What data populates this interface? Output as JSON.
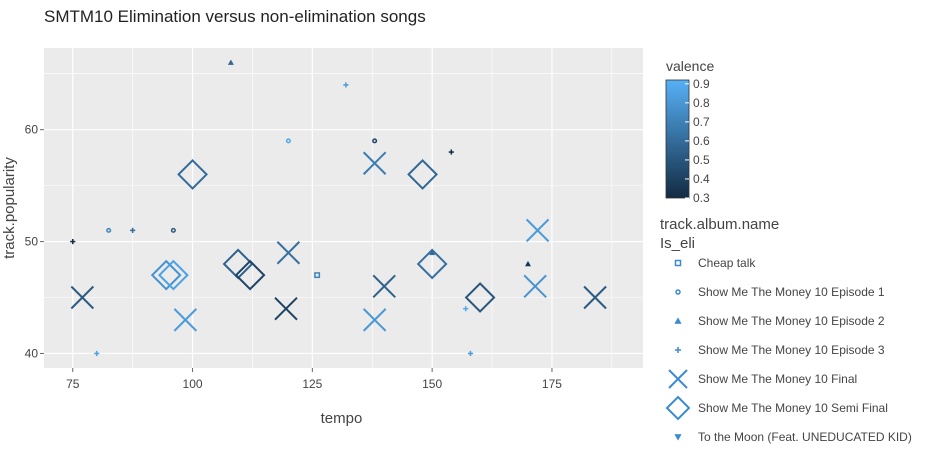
{
  "colors": {
    "panel_bg": "#ebebeb",
    "grid": "#ffffff",
    "text": "#444444",
    "scale_low": "#132b43",
    "scale_high": "#56b1f7"
  },
  "chart_data": {
    "type": "scatter",
    "title": "SMTM10 Elimination versus non-elimination songs",
    "xlabel": "tempo",
    "ylabel": "track.popularity",
    "xlim": [
      69,
      194
    ],
    "ylim": [
      38.7,
      67.3
    ],
    "x_ticks": [
      75,
      100,
      125,
      150,
      175
    ],
    "y_ticks": [
      40,
      50,
      60
    ],
    "grid": true,
    "color_legend": {
      "title": "valence",
      "ticks": [
        0.3,
        0.4,
        0.5,
        0.6,
        0.7,
        0.8,
        0.9
      ],
      "tick_labels": [
        "0.3",
        "0.4",
        "0.5",
        "0.6",
        "0.7",
        "0.8",
        "0.9"
      ],
      "range": [
        0.3,
        0.92
      ]
    },
    "shape_legend": {
      "title_line1": "track.album.name",
      "title_line2": "Is_eli",
      "placement": "right",
      "entries": [
        {
          "label": "Cheap talk",
          "shape": "square"
        },
        {
          "label": "Show Me The Money 10 Episode 1",
          "shape": "circle"
        },
        {
          "label": "Show Me The Money 10 Episode 2",
          "shape": "triangle-up"
        },
        {
          "label": "Show Me The Money 10 Episode 3",
          "shape": "cross"
        },
        {
          "label": "Show Me The Money 10 Final",
          "shape": "x"
        },
        {
          "label": "Show Me The Money 10 Semi Final",
          "shape": "diamond"
        },
        {
          "label": "To the Moon (Feat. UNEDUCATED KID)",
          "shape": "triangle-down"
        }
      ]
    },
    "series": [
      {
        "album": "Cheap talk",
        "shape": "square",
        "size": "small",
        "points": [
          {
            "x": 126,
            "y": 47,
            "valence": 0.72
          }
        ]
      },
      {
        "album": "Show Me The Money 10 Episode 1",
        "shape": "circle",
        "size": "small",
        "points": [
          {
            "x": 82.5,
            "y": 51,
            "valence": 0.72
          },
          {
            "x": 96,
            "y": 51,
            "valence": 0.52
          },
          {
            "x": 120,
            "y": 59,
            "valence": 0.88
          },
          {
            "x": 138,
            "y": 59,
            "valence": 0.42
          }
        ]
      },
      {
        "album": "Show Me The Money 10 Episode 2",
        "shape": "triangle-up",
        "size": "small",
        "points": [
          {
            "x": 108,
            "y": 66,
            "valence": 0.58
          },
          {
            "x": 150,
            "y": 49,
            "valence": 0.58
          },
          {
            "x": 170,
            "y": 48,
            "valence": 0.35
          }
        ]
      },
      {
        "album": "Show Me The Money 10 Episode 3",
        "shape": "cross",
        "size": "small",
        "points": [
          {
            "x": 75,
            "y": 50,
            "valence": 0.3
          },
          {
            "x": 87.5,
            "y": 51,
            "valence": 0.6
          },
          {
            "x": 80,
            "y": 40,
            "valence": 0.85
          },
          {
            "x": 132,
            "y": 64,
            "valence": 0.82
          },
          {
            "x": 154,
            "y": 58,
            "valence": 0.3
          },
          {
            "x": 157,
            "y": 44,
            "valence": 0.88
          },
          {
            "x": 158,
            "y": 40,
            "valence": 0.82
          }
        ]
      },
      {
        "album": "Show Me The Money 10 Final",
        "shape": "x",
        "size": "large",
        "points": [
          {
            "x": 77,
            "y": 45,
            "valence": 0.52
          },
          {
            "x": 98.5,
            "y": 43,
            "valence": 0.82
          },
          {
            "x": 119.5,
            "y": 44,
            "valence": 0.4
          },
          {
            "x": 120,
            "y": 49,
            "valence": 0.62
          },
          {
            "x": 138,
            "y": 57,
            "valence": 0.68
          },
          {
            "x": 138,
            "y": 43,
            "valence": 0.8
          },
          {
            "x": 140,
            "y": 46,
            "valence": 0.55
          },
          {
            "x": 172,
            "y": 51,
            "valence": 0.82
          },
          {
            "x": 171.5,
            "y": 46,
            "valence": 0.78
          },
          {
            "x": 184,
            "y": 45,
            "valence": 0.52
          }
        ]
      },
      {
        "album": "Show Me The Money 10 Semi Final",
        "shape": "diamond",
        "size": "large",
        "points": [
          {
            "x": 100,
            "y": 56,
            "valence": 0.6
          },
          {
            "x": 94.5,
            "y": 47,
            "valence": 0.78
          },
          {
            "x": 96,
            "y": 47,
            "valence": 0.85
          },
          {
            "x": 109.5,
            "y": 48,
            "valence": 0.55
          },
          {
            "x": 112,
            "y": 47,
            "valence": 0.42
          },
          {
            "x": 148,
            "y": 56,
            "valence": 0.58
          },
          {
            "x": 150,
            "y": 48,
            "valence": 0.62
          },
          {
            "x": 160,
            "y": 45,
            "valence": 0.5
          }
        ]
      }
    ]
  }
}
